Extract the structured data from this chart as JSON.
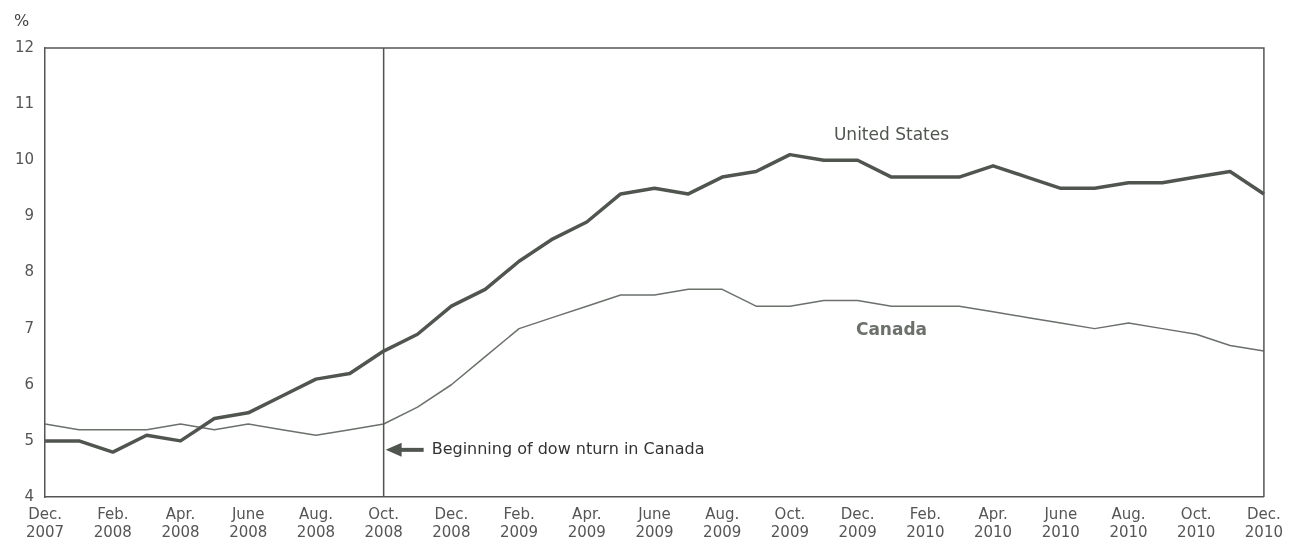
{
  "chart_data": {
    "type": "line",
    "ylabel": "%",
    "categories": [
      "Dec. 2007",
      null,
      "Feb. 2008",
      null,
      "Apr. 2008",
      null,
      "June 2008",
      null,
      "Aug. 2008",
      null,
      "Oct. 2008",
      null,
      "Dec. 2008",
      null,
      "Feb. 2009",
      null,
      "Apr. 2009",
      null,
      "June 2009",
      null,
      "Aug. 2009",
      null,
      "Oct. 2009",
      null,
      "Dec. 2009",
      null,
      "Feb. 2010",
      null,
      "Apr. 2010",
      null,
      "June 2010",
      null,
      "Aug. 2010",
      null,
      "Oct. 2010",
      null,
      "Dec. 2010"
    ],
    "series": [
      {
        "name": "United States",
        "color": "#505550",
        "values": [
          5.0,
          5.0,
          4.8,
          5.1,
          5.0,
          5.4,
          5.5,
          5.8,
          6.1,
          6.2,
          6.6,
          6.9,
          7.4,
          7.7,
          8.2,
          8.6,
          8.9,
          9.4,
          9.5,
          9.4,
          9.7,
          9.8,
          10.1,
          10.0,
          10.0,
          9.7,
          9.7,
          9.7,
          9.9,
          9.7,
          9.5,
          9.5,
          9.6,
          9.6,
          9.7,
          9.8,
          9.4
        ]
      },
      {
        "name": "Canada",
        "color": "#6b706b",
        "values": [
          5.3,
          5.2,
          5.2,
          5.2,
          5.3,
          5.2,
          5.3,
          5.2,
          5.1,
          5.2,
          5.3,
          5.6,
          6.0,
          6.5,
          7.0,
          7.2,
          7.4,
          7.6,
          7.6,
          7.7,
          7.7,
          7.4,
          7.4,
          7.5,
          7.5,
          7.4,
          7.4,
          7.4,
          7.3,
          7.2,
          7.1,
          7.0,
          7.1,
          7.0,
          6.9,
          6.7,
          6.6
        ]
      }
    ],
    "ylim": [
      4,
      12
    ],
    "yticks": [
      4,
      5,
      6,
      7,
      8,
      9,
      10,
      11,
      12
    ],
    "grid": false,
    "legend": false,
    "marker": "none",
    "line_style": "solid",
    "ref_lines": [
      {
        "axis": "x",
        "value": "Oct. 2008",
        "color": "#505550",
        "label": "Beginning of dow nturn in Canada"
      }
    ]
  }
}
